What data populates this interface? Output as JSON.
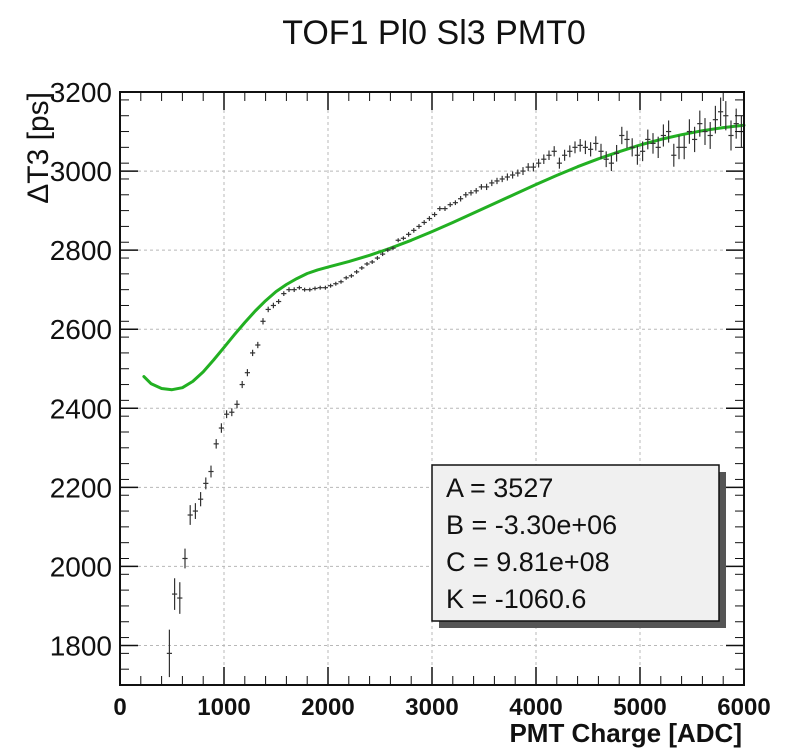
{
  "chart_data": {
    "type": "scatter",
    "title": "TOF1 Pl0 Sl3 PMT0",
    "xlabel": "PMT Charge [ADC]",
    "ylabel": "ΔT3 [ps]",
    "xlim": [
      0,
      6000
    ],
    "ylim": [
      1700,
      3200
    ],
    "xticks": [
      "0",
      "1000",
      "2000",
      "3000",
      "4000",
      "5000",
      "6000"
    ],
    "yticks": [
      "1800",
      "2000",
      "2200",
      "2400",
      "2600",
      "2800",
      "3000",
      "3200"
    ],
    "grid": true,
    "legend": "none",
    "colors": {
      "fit": "#22b022",
      "points": "#333333",
      "grid": "#b8b8b8",
      "frame": "#111111",
      "stats_fill": "#f0f0f0"
    },
    "series": [
      {
        "type": "scatter_errorbars",
        "x": [
          475,
          525,
          575,
          625,
          675,
          725,
          775,
          825,
          875,
          925,
          975,
          1025,
          1075,
          1125,
          1175,
          1225,
          1275,
          1325,
          1375,
          1425,
          1475,
          1525,
          1575,
          1625,
          1675,
          1725,
          1775,
          1825,
          1875,
          1925,
          1975,
          2025,
          2075,
          2125,
          2175,
          2225,
          2275,
          2325,
          2375,
          2425,
          2475,
          2525,
          2575,
          2625,
          2675,
          2725,
          2775,
          2825,
          2875,
          2925,
          2975,
          3025,
          3075,
          3125,
          3175,
          3225,
          3275,
          3325,
          3375,
          3425,
          3475,
          3525,
          3575,
          3625,
          3675,
          3725,
          3775,
          3825,
          3875,
          3925,
          3975,
          4025,
          4075,
          4125,
          4175,
          4225,
          4275,
          4325,
          4375,
          4425,
          4475,
          4525,
          4575,
          4625,
          4675,
          4725,
          4775,
          4825,
          4875,
          4925,
          4975,
          5025,
          5075,
          5125,
          5175,
          5225,
          5275,
          5325,
          5375,
          5425,
          5475,
          5525,
          5575,
          5625,
          5675,
          5725,
          5775,
          5825,
          5875,
          5925,
          5975
        ],
        "y": [
          1780,
          1930,
          1920,
          2020,
          2130,
          2140,
          2170,
          2210,
          2240,
          2310,
          2350,
          2385,
          2390,
          2410,
          2460,
          2490,
          2540,
          2560,
          2620,
          2650,
          2660,
          2670,
          2690,
          2700,
          2700,
          2705,
          2700,
          2700,
          2703,
          2705,
          2705,
          2710,
          2715,
          2720,
          2730,
          2735,
          2745,
          2755,
          2765,
          2770,
          2780,
          2790,
          2800,
          2805,
          2825,
          2830,
          2840,
          2850,
          2860,
          2870,
          2880,
          2890,
          2905,
          2905,
          2915,
          2920,
          2930,
          2940,
          2945,
          2950,
          2960,
          2960,
          2970,
          2975,
          2980,
          2985,
          2990,
          2995,
          3000,
          3010,
          3010,
          3020,
          3030,
          3040,
          3050,
          3020,
          3040,
          3050,
          3060,
          3065,
          3060,
          3055,
          3070,
          3050,
          3030,
          3020,
          3045,
          3090,
          3080,
          3060,
          3040,
          3050,
          3080,
          3070,
          3060,
          3090,
          3100,
          3040,
          3060,
          3060,
          3100,
          3080,
          3120,
          3100,
          3090,
          3130,
          3150,
          3140,
          3090,
          3120,
          3100
        ],
        "yerr": [
          60,
          40,
          40,
          25,
          25,
          20,
          18,
          15,
          15,
          12,
          12,
          10,
          10,
          10,
          9,
          9,
          8,
          8,
          8,
          7,
          7,
          6,
          6,
          6,
          6,
          5,
          5,
          5,
          5,
          5,
          5,
          5,
          5,
          5,
          5,
          5,
          5,
          5,
          5,
          5,
          5,
          5,
          5,
          5,
          5,
          5,
          6,
          6,
          6,
          6,
          6,
          6,
          6,
          6,
          6,
          6,
          7,
          7,
          7,
          7,
          7,
          8,
          8,
          8,
          8,
          9,
          9,
          9,
          10,
          10,
          11,
          11,
          12,
          12,
          13,
          14,
          14,
          15,
          15,
          16,
          17,
          18,
          18,
          19,
          20,
          20,
          21,
          22,
          22,
          23,
          24,
          25,
          25,
          26,
          27,
          28,
          28,
          29,
          30,
          30,
          31,
          32,
          33,
          34,
          34,
          35,
          36,
          37,
          38,
          38,
          40
        ]
      },
      {
        "type": "line",
        "x": [
          230,
          300,
          400,
          500,
          600,
          700,
          800,
          900,
          1000,
          1100,
          1200,
          1300,
          1400,
          1500,
          1600,
          1700,
          1800,
          1900,
          2000,
          2200,
          2400,
          2600,
          2800,
          3000,
          3200,
          3400,
          3600,
          3800,
          4000,
          4200,
          4400,
          4600,
          4800,
          5000,
          5200,
          5400,
          5600,
          5800,
          6000
        ],
        "y": [
          2480,
          2462,
          2450,
          2447,
          2452,
          2468,
          2492,
          2522,
          2554,
          2586,
          2617,
          2646,
          2672,
          2695,
          2713,
          2728,
          2741,
          2750,
          2757,
          2771,
          2787,
          2805,
          2825,
          2847,
          2870,
          2894,
          2918,
          2942,
          2966,
          2989,
          3011,
          3031,
          3049,
          3066,
          3080,
          3092,
          3102,
          3110,
          3116
        ]
      }
    ],
    "fit_params": {
      "lines": [
        "A = 3527",
        "B = -3.30e+06",
        "C = 9.81e+08",
        "K = -1060.6"
      ]
    }
  }
}
